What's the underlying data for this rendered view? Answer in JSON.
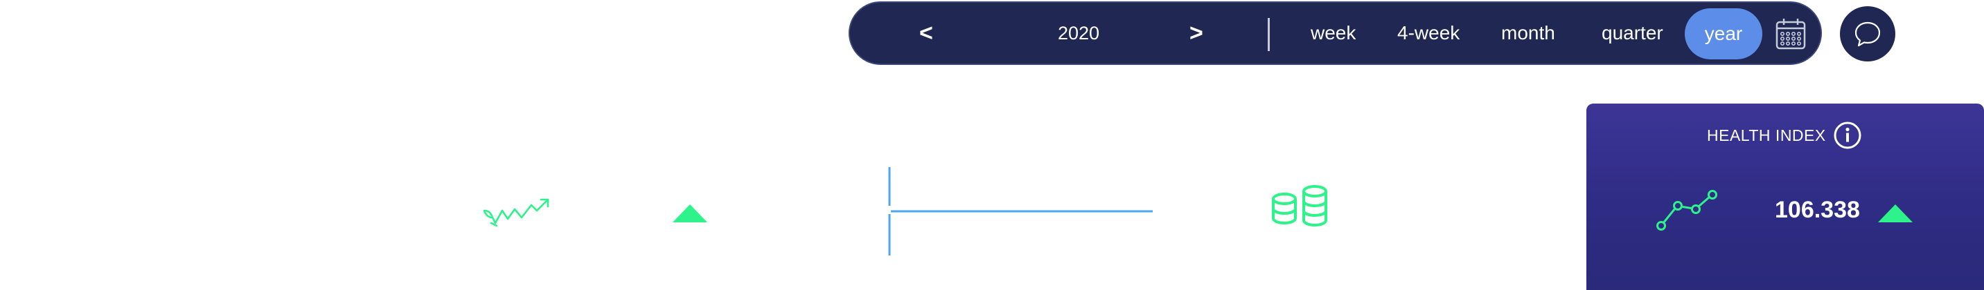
{
  "period_nav": {
    "prev_label": "<",
    "current_period": "2020",
    "next_label": ">",
    "options": [
      "week",
      "4-week",
      "month",
      "quarter",
      "year"
    ],
    "selected": "year"
  },
  "icons": {
    "calendar": "calendar-icon",
    "chat": "chat-bubble-icon",
    "growth": "growth-trend-icon",
    "up_arrow": "up-arrow-icon",
    "coins": "coins-icon",
    "info": "info-icon",
    "sparkline": "sparkline-icon"
  },
  "health_index": {
    "title": "HEALTH INDEX",
    "value": "106.338",
    "trend": "up"
  },
  "colors": {
    "nav_bg": "#1f2752",
    "pill_active": "#5c8de8",
    "positive": "#2ef28a",
    "accent_line": "#4ea6ef",
    "card_bg": "#2f2c86"
  }
}
